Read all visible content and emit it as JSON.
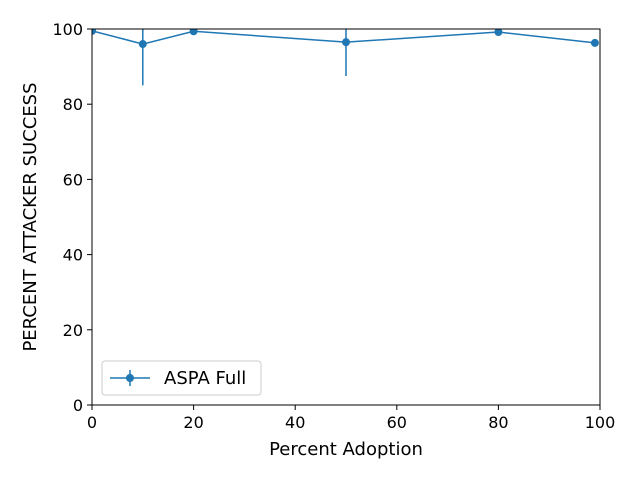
{
  "chart_data": {
    "type": "line",
    "title": "",
    "xlabel": "Percent Adoption",
    "ylabel": "PERCENT ATTACKER SUCCESS",
    "xlim": [
      0,
      100
    ],
    "ylim": [
      0,
      100
    ],
    "xticks": [
      0,
      20,
      40,
      60,
      80,
      100
    ],
    "yticks": [
      0,
      20,
      40,
      60,
      80,
      100
    ],
    "grid": false,
    "legend_position": "lower-left",
    "series": [
      {
        "name": "ASPA Full",
        "color": "#1f77b4",
        "marker": "circle",
        "x": [
          0,
          10,
          20,
          50,
          80,
          99
        ],
        "y": [
          99.5,
          96.0,
          99.4,
          96.5,
          99.2,
          96.3
        ],
        "yerr": [
          0.5,
          11.0,
          0.5,
          9.0,
          0.6,
          0.5
        ]
      }
    ]
  }
}
